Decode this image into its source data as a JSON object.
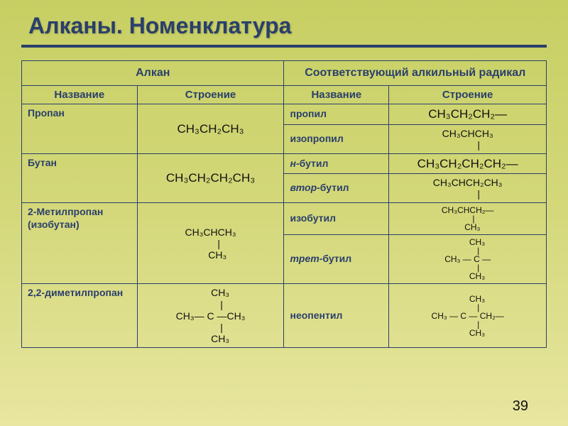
{
  "title": "Алканы. Номенклатура",
  "page_number": "39",
  "colors": {
    "accent": "#2a3f6b",
    "bg_top": "#c7cf63",
    "bg_bottom": "#e8e6a0",
    "text": "#111111"
  },
  "headers": {
    "alkane": "Алкан",
    "radical": "Соответствующий алкильный радикал",
    "name": "Название",
    "structure": "Строение"
  },
  "rows": {
    "propane": {
      "name": "Пропан",
      "formula": "CH₃CH₂CH₃",
      "radicals": {
        "propyl": {
          "name": "пропил",
          "formula": "CH₃CH₂CH₂—"
        },
        "isopropyl": {
          "name": "изопропил",
          "formula": "CH₃CHCH₃\n        |"
        }
      }
    },
    "butane": {
      "name": "Бутан",
      "formula": "CH₃CH₂CH₂CH₃",
      "radicals": {
        "nbutyl": {
          "prefix": "н-",
          "name": "бутил",
          "formula": "CH₃CH₂CH₂CH₂—"
        },
        "secbutyl": {
          "prefix": "втор-",
          "name": "бутил",
          "formula": "CH₃CHCH₂CH₃\n        |"
        }
      }
    },
    "mp": {
      "name": "2-Метилпропан\n(изобутан)",
      "formula": "CH₃CHCH₃\n      |\n     CH₃",
      "radicals": {
        "isobutyl": {
          "name": "изобутил",
          "formula": "CH₃CHCH₂—\n     |\n    CH₃"
        },
        "tertbutyl": {
          "prefix": "трет-",
          "name": "бутил",
          "formula": "        CH₃\n         |\nCH₃ — C —\n         |\n        CH₃"
        }
      }
    },
    "dmp": {
      "name": "2,2-диметилпропан",
      "formula": "       CH₃\n        |\nCH₃— C —CH₃\n        |\n       CH₃",
      "radicals": {
        "neopentyl": {
          "name": "неопентил",
          "formula": "        CH₃\n         |\nCH₃ — C — CH₂—\n         |\n        CH₃"
        }
      }
    }
  }
}
